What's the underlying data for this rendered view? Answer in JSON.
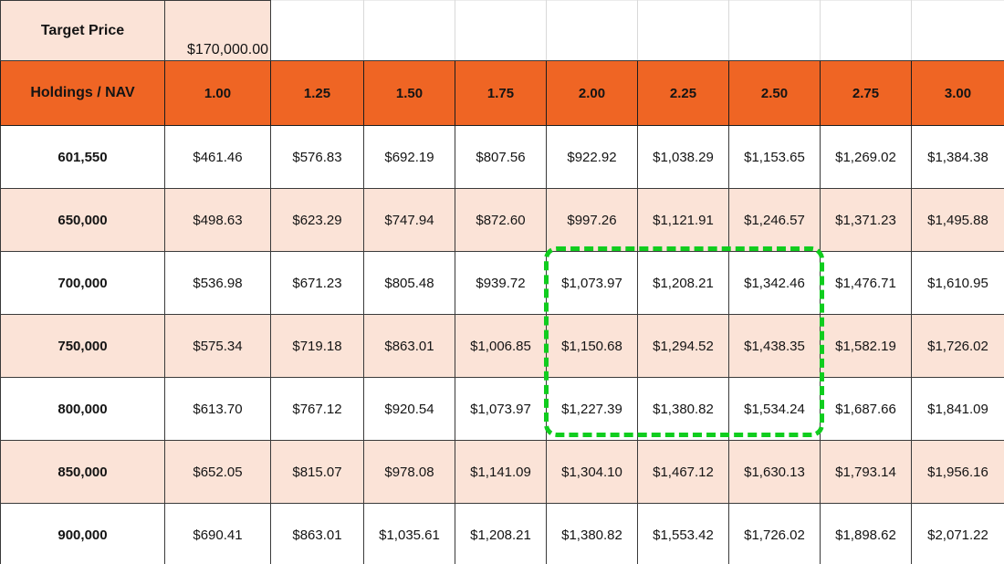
{
  "colors": {
    "header_orange": "#EF6524",
    "peach": "#FBE3D7",
    "grid_dark": "#3a3a3a",
    "grid_light": "#d9d9d9",
    "highlight_green": "#10CD1E",
    "text_black": "#141414"
  },
  "top_row": {
    "label": "Target Price",
    "value": "$170,000.00"
  },
  "header_row": {
    "label": "Holdings / NAV",
    "columns": [
      "1.00",
      "1.25",
      "1.50",
      "1.75",
      "2.00",
      "2.25",
      "2.50",
      "2.75",
      "3.00"
    ]
  },
  "rows": [
    {
      "holding": "601,550",
      "shaded": false,
      "values": [
        "$461.46",
        "$576.83",
        "$692.19",
        "$807.56",
        "$922.92",
        "$1,038.29",
        "$1,153.65",
        "$1,269.02",
        "$1,384.38"
      ]
    },
    {
      "holding": "650,000",
      "shaded": true,
      "values": [
        "$498.63",
        "$623.29",
        "$747.94",
        "$872.60",
        "$997.26",
        "$1,121.91",
        "$1,246.57",
        "$1,371.23",
        "$1,495.88"
      ]
    },
    {
      "holding": "700,000",
      "shaded": false,
      "values": [
        "$536.98",
        "$671.23",
        "$805.48",
        "$939.72",
        "$1,073.97",
        "$1,208.21",
        "$1,342.46",
        "$1,476.71",
        "$1,610.95"
      ]
    },
    {
      "holding": "750,000",
      "shaded": true,
      "values": [
        "$575.34",
        "$719.18",
        "$863.01",
        "$1,006.85",
        "$1,150.68",
        "$1,294.52",
        "$1,438.35",
        "$1,582.19",
        "$1,726.02"
      ]
    },
    {
      "holding": "800,000",
      "shaded": false,
      "values": [
        "$613.70",
        "$767.12",
        "$920.54",
        "$1,073.97",
        "$1,227.39",
        "$1,380.82",
        "$1,534.24",
        "$1,687.66",
        "$1,841.09"
      ]
    },
    {
      "holding": "850,000",
      "shaded": true,
      "values": [
        "$652.05",
        "$815.07",
        "$978.08",
        "$1,141.09",
        "$1,304.10",
        "$1,467.12",
        "$1,630.13",
        "$1,793.14",
        "$1,956.16"
      ]
    },
    {
      "holding": "900,000",
      "shaded": false,
      "values": [
        "$690.41",
        "$863.01",
        "$1,035.61",
        "$1,208.21",
        "$1,380.82",
        "$1,553.42",
        "$1,726.02",
        "$1,898.62",
        "$2,071.22"
      ]
    }
  ],
  "highlight": {
    "style": "green-dashed-selection",
    "covered_columns": [
      "2.00",
      "2.25",
      "2.50"
    ],
    "covered_rows": [
      "700,000",
      "750,000",
      "800,000"
    ]
  }
}
